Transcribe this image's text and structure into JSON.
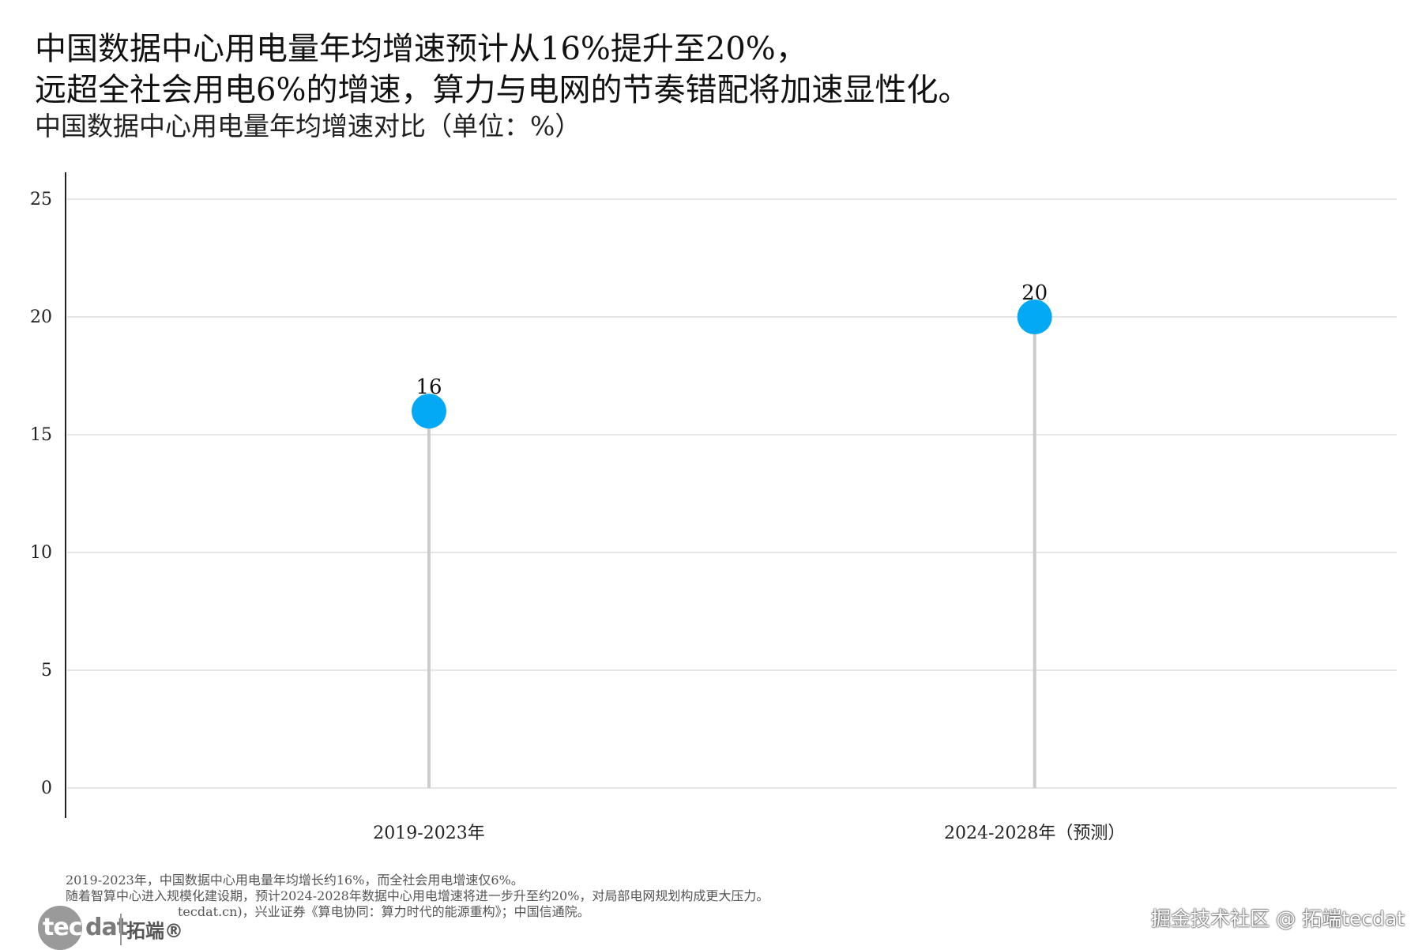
{
  "title_lines": [
    "中国数据中心用电量年均增速预计从16%提升至20%，",
    "远超全社会用电6%的增速，算力与电网的节奏错配将加速显性化。"
  ],
  "subtitle": "中国数据中心用电量年均增速对比（单位：%）",
  "chart_data": {
    "type": "lollipop",
    "categories": [
      "2019-2023年",
      "2024-2028年（预测）"
    ],
    "values": [
      16,
      20
    ],
    "data_labels": [
      "16",
      "20"
    ],
    "title": "中国数据中心用电量年均增速对比（单位：%）",
    "ylim": [
      0,
      26
    ],
    "yticks": [
      0,
      5,
      10,
      15,
      20,
      25
    ],
    "grid": "horizontal",
    "colors": {
      "marker": "#03a9f4",
      "stem": "#cccccc",
      "grid": "#e6e6e6",
      "axis": "#222222"
    }
  },
  "notes": [
    "2019-2023年，中国数据中心用电量年均增长约16%，而全社会用电增速仅6%。",
    "随着智算中心进入规模化建设期，预计2024-2028年数据中心用电增速将进一步升至约20%，对局部电网规划构成更大压力。",
    "tecdat.cn)，兴业证券《算电协同：算力时代的能源重构》；中国信通院。"
  ],
  "logo": {
    "left_part": "tec",
    "right_part": "dat",
    "cn": "拓端®"
  },
  "watermark": "掘金技术社区 @ 拓端tecdat"
}
